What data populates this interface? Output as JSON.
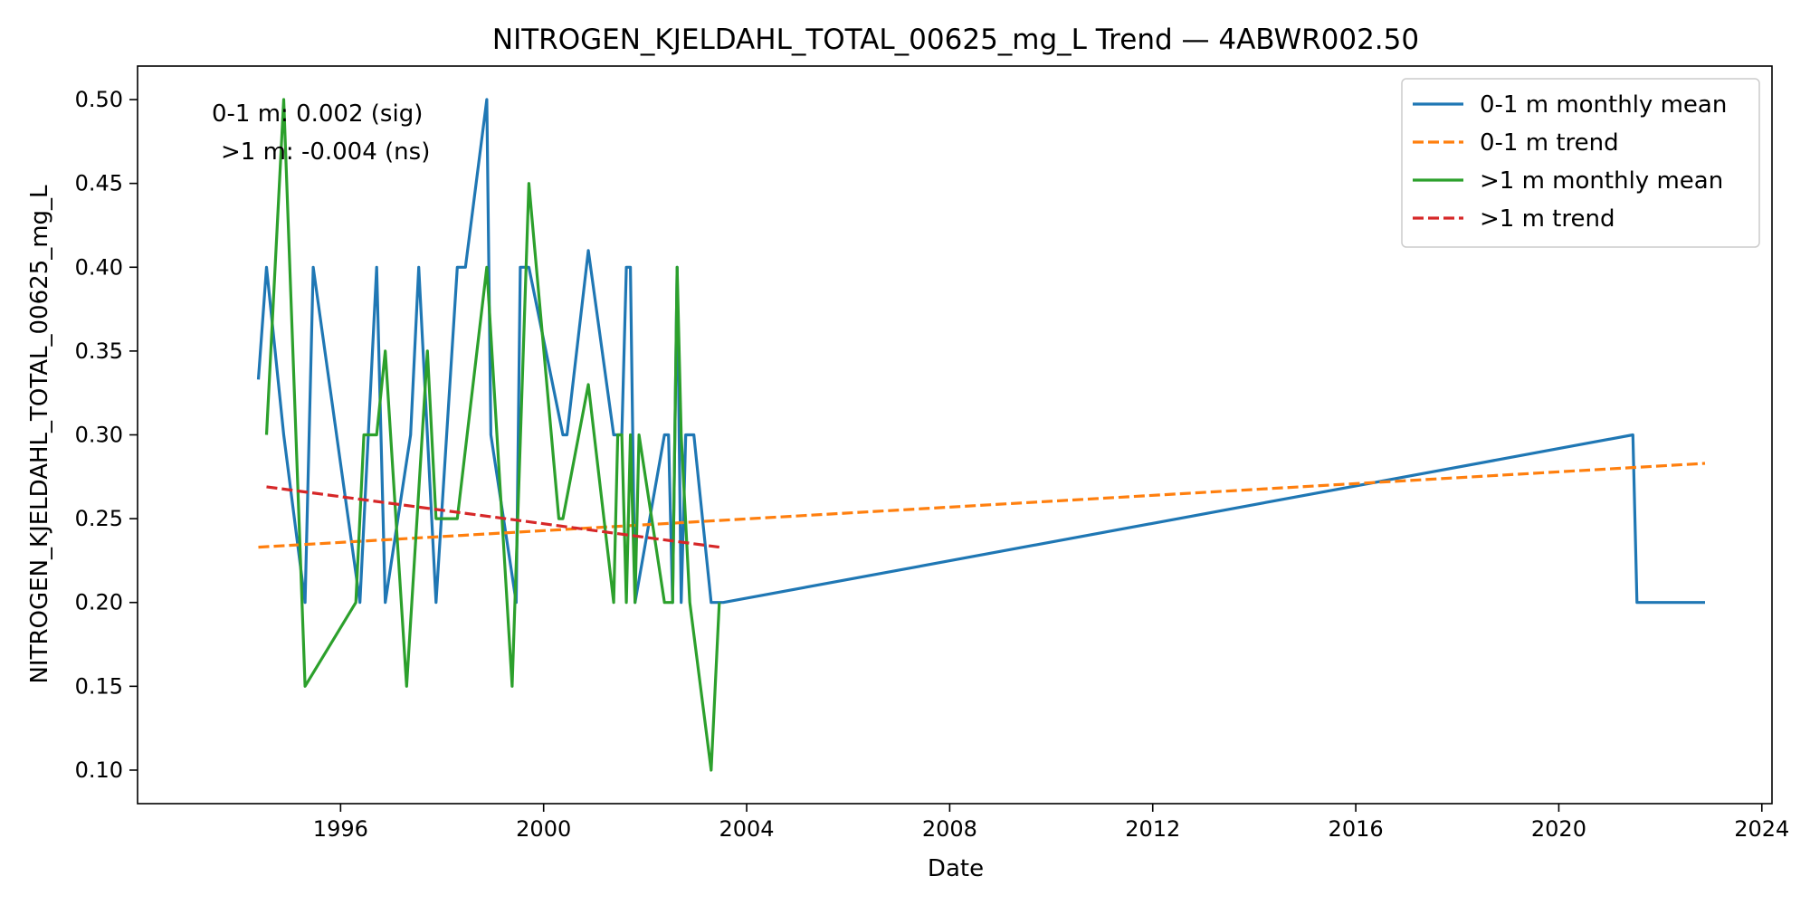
{
  "chart_data": {
    "type": "line",
    "title": "NITROGEN_KJELDAHL_TOTAL_00625_mg_L Trend — 4ABWR002.50",
    "xlabel": "Date",
    "ylabel": "NITROGEN_KJELDAHL_TOTAL_00625_mg_L",
    "xlim": [
      1992.0,
      2024.2
    ],
    "ylim": [
      0.08,
      0.52
    ],
    "x_ticks": [
      1996,
      2000,
      2004,
      2008,
      2012,
      2016,
      2020,
      2024
    ],
    "x_tick_labels": [
      "1996",
      "2000",
      "2004",
      "2008",
      "2012",
      "2016",
      "2020",
      "2024"
    ],
    "y_ticks": [
      0.1,
      0.15,
      0.2,
      0.25,
      0.3,
      0.35,
      0.4,
      0.45,
      0.5
    ],
    "y_tick_labels": [
      "0.10",
      "0.15",
      "0.20",
      "0.25",
      "0.30",
      "0.35",
      "0.40",
      "0.45",
      "0.50"
    ],
    "grid": false,
    "legend_position": "top-right",
    "annotations": [
      "0-1 m: 0.002 (sig)",
      ">1 m: -0.004 (ns)"
    ],
    "series": [
      {
        "name": "0-1 m monthly mean",
        "style": "solid",
        "color": "#1f77b4",
        "points": [
          [
            1994.38,
            0.333
          ],
          [
            1994.54,
            0.4
          ],
          [
            1994.88,
            0.3
          ],
          [
            1995.3,
            0.2
          ],
          [
            1995.46,
            0.4
          ],
          [
            1996.38,
            0.2
          ],
          [
            1996.71,
            0.4
          ],
          [
            1996.88,
            0.2
          ],
          [
            1997.38,
            0.3
          ],
          [
            1997.54,
            0.4
          ],
          [
            1997.88,
            0.2
          ],
          [
            1998.3,
            0.4
          ],
          [
            1998.46,
            0.4
          ],
          [
            1998.88,
            0.5
          ],
          [
            1998.96,
            0.3
          ],
          [
            1999.46,
            0.2
          ],
          [
            1999.54,
            0.4
          ],
          [
            1999.71,
            0.4
          ],
          [
            2000.38,
            0.3
          ],
          [
            2000.46,
            0.3
          ],
          [
            2000.88,
            0.41
          ],
          [
            2001.38,
            0.3
          ],
          [
            2001.54,
            0.3
          ],
          [
            2001.63,
            0.4
          ],
          [
            2001.71,
            0.4
          ],
          [
            2001.8,
            0.2
          ],
          [
            2002.38,
            0.3
          ],
          [
            2002.46,
            0.3
          ],
          [
            2002.54,
            0.2
          ],
          [
            2002.63,
            0.4
          ],
          [
            2002.71,
            0.2
          ],
          [
            2002.8,
            0.3
          ],
          [
            2002.96,
            0.3
          ],
          [
            2003.3,
            0.2
          ],
          [
            2003.54,
            0.2
          ],
          [
            2021.46,
            0.3
          ],
          [
            2021.54,
            0.2
          ],
          [
            2022.88,
            0.2
          ]
        ]
      },
      {
        "name": "0-1 m trend",
        "style": "dashed",
        "color": "#ff7f0e",
        "points": [
          [
            1994.38,
            0.233
          ],
          [
            2022.88,
            0.283
          ]
        ]
      },
      {
        "name": ">1 m monthly mean",
        "style": "solid",
        "color": "#2ca02c",
        "points": [
          [
            1994.54,
            0.3
          ],
          [
            1994.88,
            0.5
          ],
          [
            1995.3,
            0.15
          ],
          [
            1996.3,
            0.2
          ],
          [
            1996.46,
            0.3
          ],
          [
            1996.71,
            0.3
          ],
          [
            1996.88,
            0.35
          ],
          [
            1997.3,
            0.15
          ],
          [
            1997.71,
            0.35
          ],
          [
            1997.88,
            0.25
          ],
          [
            1998.3,
            0.25
          ],
          [
            1998.88,
            0.4
          ],
          [
            1999.38,
            0.15
          ],
          [
            1999.71,
            0.45
          ],
          [
            2000.3,
            0.25
          ],
          [
            2000.38,
            0.25
          ],
          [
            2000.88,
            0.33
          ],
          [
            2001.38,
            0.2
          ],
          [
            2001.46,
            0.3
          ],
          [
            2001.54,
            0.3
          ],
          [
            2001.63,
            0.2
          ],
          [
            2001.71,
            0.3
          ],
          [
            2001.8,
            0.2
          ],
          [
            2001.88,
            0.3
          ],
          [
            2002.38,
            0.2
          ],
          [
            2002.54,
            0.2
          ],
          [
            2002.63,
            0.4
          ],
          [
            2002.71,
            0.3
          ],
          [
            2002.88,
            0.2
          ],
          [
            2003.3,
            0.1
          ],
          [
            2003.46,
            0.2
          ]
        ]
      },
      {
        "name": ">1 m trend",
        "style": "dashed",
        "color": "#d62728",
        "points": [
          [
            1994.54,
            0.269
          ],
          [
            2003.46,
            0.233
          ]
        ]
      }
    ]
  }
}
